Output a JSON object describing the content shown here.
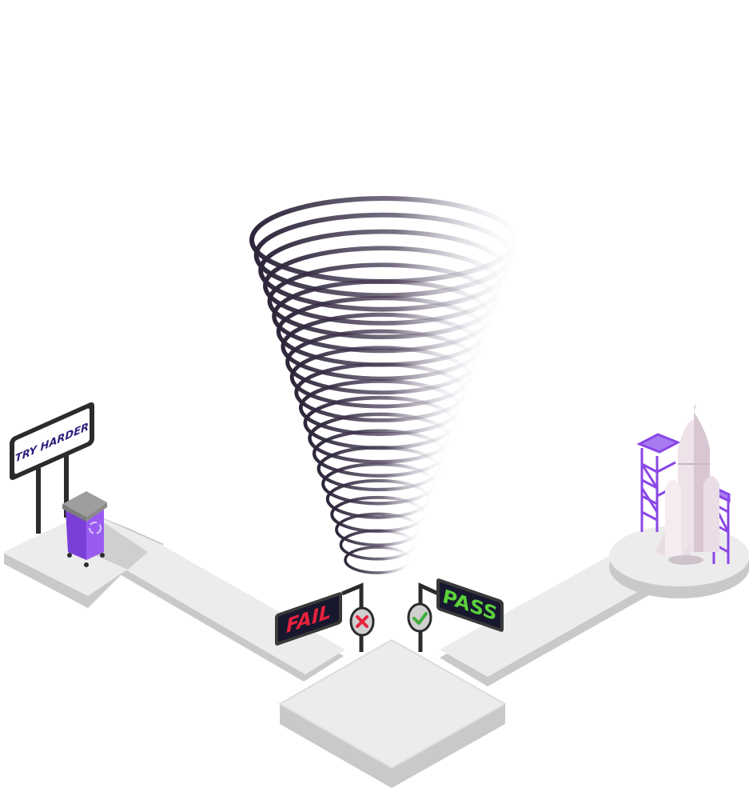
{
  "signs": {
    "try_harder": "TRY HARDER",
    "fail": "FAIL",
    "pass": "PASS"
  },
  "icons": {
    "fail_marker": "x-icon",
    "pass_marker": "check-icon",
    "bin": "recycle-icon",
    "launch": "rocket-icon"
  },
  "colors": {
    "platform_top": "#ececec",
    "platform_side": "#c9c9c9",
    "sign_board": "#17172e",
    "sign_frame": "#3a3a3a",
    "try_harder_text": "#2a1f7a",
    "fail_text": "#e8223c",
    "pass_text": "#5bd13b",
    "accent_purple": "#8a46e6",
    "funnel_ring": "#3a3148"
  }
}
